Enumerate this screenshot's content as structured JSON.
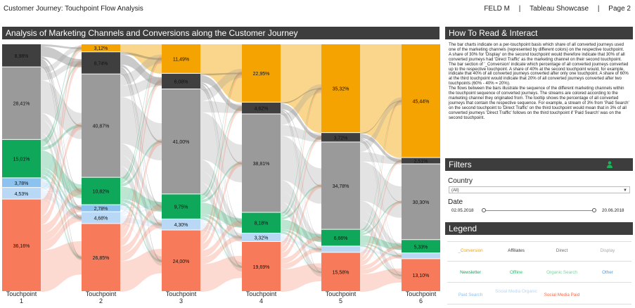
{
  "header": {
    "title": "Customer Journey: Touchpoint Flow Analysis",
    "brand": "FELD M",
    "sep1": "|",
    "showcase": "Tableau Showcase",
    "sep2": "|",
    "page": "Page 2"
  },
  "main": {
    "title": "Analysis of Marketing Channels and Conversions along the Customer Journey"
  },
  "howto": {
    "title": "How To Read & Interact",
    "paragraphs": [
      "The bar charts indicate on a per-touchpoint basis which share of all converted journeys used one of the marketing channels (represented by different colors) on the respective touchpoint.",
      "A share of 30% for 'Display' on the second touchpoint would therefore indicate that 30% of all converted journeys had 'Direct Traffic' as the marketing channel on their second touchpoint.",
      "The bar section of '_Conversion' indicate which percentage of all converted journeys converted up to the respective touchpoint. A share of 40% at the second touchpoint would, for example, indicate that 40% of all converted journeys converted after only one touchpoint. A share of 60% at the third touchpoint would indicate that 20% of all converted journeys converted after two touchpoints (60% - 40% = 20%).",
      "The flows between the bars illustrate the sequence of the different marketing channels within the touchpoint sequence of converted journeys. The streams are colored according to the marketing channel they originated from. The tooltip shows the percentage of all converted journeys that contain the respective sequence. For example, a stream of 3% from 'Paid Search' on the second touchpoint to 'Direct Traffic' on the third touchpoint would mean that in 3% of all converted journeys 'Direct Traffic' follows on the third touchpoint if 'Paid Search' was on the second touchpoint."
    ]
  },
  "filters": {
    "title": "Filters",
    "country_label": "Country",
    "country_value": "(All)",
    "date_label": "Date",
    "date_start": "02.05.2018",
    "date_end": "20.06.2018",
    "icon": "person-icon"
  },
  "legend": {
    "title": "Legend",
    "items": [
      {
        "label": "_Conversion",
        "color": "#f5a300"
      },
      {
        "label": "Affiliates",
        "color": "#3a3a3a"
      },
      {
        "label": "Direct",
        "color": "#6d6d6d"
      },
      {
        "label": "Display",
        "color": "#a8a8a8"
      },
      {
        "label": "Newsletter",
        "color": "#1aa35a"
      },
      {
        "label": "Offline",
        "color": "#38b86e"
      },
      {
        "label": "Organic Search",
        "color": "#7fd0a0"
      },
      {
        "label": "Other",
        "color": "#4b9be0"
      },
      {
        "label": "Paid Search",
        "color": "#8cbff0"
      },
      {
        "label": "Social Media Organic",
        "color": "#b7d6f5"
      },
      {
        "label": "Social Media Paid",
        "color": "#f26a4c"
      }
    ]
  },
  "chart_data": {
    "type": "bar",
    "categories": [
      "Touchpoint 1",
      "Touchpoint 2",
      "Touchpoint 3",
      "Touchpoint 4",
      "Touchpoint 5",
      "Touchpoint 6"
    ],
    "tp_lines": [
      [
        "Touchpoint",
        "1"
      ],
      [
        "Touchpoint",
        "2"
      ],
      [
        "Touchpoint",
        "3"
      ],
      [
        "Touchpoint",
        "4"
      ],
      [
        "Touchpoint",
        "5"
      ],
      [
        "Touchpoint",
        "6"
      ]
    ],
    "colors": {
      "_Conversion": "#f5a300",
      "Affiliates": "#3f3f3f",
      "Direct": "#9a9a9a",
      "Newsletter": "#0fa75a",
      "Other": "#8bc2f0",
      "Paid Search": "#b8d8f5",
      "Social Media Paid": "#f77b5a"
    },
    "bars": [
      [
        {
          "channel": "Affiliates",
          "value": 8.98,
          "label": "8,98%"
        },
        {
          "channel": "Direct",
          "value": 28.41,
          "label": "28,41%"
        },
        {
          "channel": "Newsletter",
          "value": 15.01,
          "label": "15,01%"
        },
        {
          "channel": "Other",
          "value": 3.78,
          "label": "3,78%"
        },
        {
          "channel": "Paid Search",
          "value": 4.53,
          "label": "4,53%"
        },
        {
          "channel": "Social Media Paid",
          "value": 36.16,
          "label": "36,16%"
        }
      ],
      [
        {
          "channel": "_Conversion",
          "value": 3.12,
          "label": "3,12%"
        },
        {
          "channel": "Affiliates",
          "value": 8.74,
          "label": "8,74%"
        },
        {
          "channel": "Direct",
          "value": 40.87,
          "label": "40,87%"
        },
        {
          "channel": "Newsletter",
          "value": 10.82,
          "label": "10,82%"
        },
        {
          "channel": "Other",
          "value": 2.78,
          "label": "2,78%"
        },
        {
          "channel": "Paid Search",
          "value": 4.68,
          "label": "4,68%"
        },
        {
          "channel": "Social Media Paid",
          "value": 26.85,
          "label": "26,85%"
        }
      ],
      [
        {
          "channel": "_Conversion",
          "value": 11.49,
          "label": "11,49%"
        },
        {
          "channel": "Affiliates",
          "value": 6.08,
          "label": "6,08%"
        },
        {
          "channel": "Direct",
          "value": 41.0,
          "label": "41,00%"
        },
        {
          "channel": "Newsletter",
          "value": 9.75,
          "label": "9,75%"
        },
        {
          "channel": "Paid Search",
          "value": 4.3,
          "label": "4,30%"
        },
        {
          "channel": "Social Media Paid",
          "value": 24.0,
          "label": "24,00%"
        }
      ],
      [
        {
          "channel": "_Conversion",
          "value": 22.95,
          "label": "22,95%"
        },
        {
          "channel": "Affiliates",
          "value": 4.62,
          "label": "4,62%"
        },
        {
          "channel": "Direct",
          "value": 38.81,
          "label": "38,81%"
        },
        {
          "channel": "Newsletter",
          "value": 8.18,
          "label": "8,18%"
        },
        {
          "channel": "Paid Search",
          "value": 3.32,
          "label": "3,32%"
        },
        {
          "channel": "Social Media Paid",
          "value": 19.69,
          "label": "19,69%"
        }
      ],
      [
        {
          "channel": "_Conversion",
          "value": 35.32,
          "label": "35,32%"
        },
        {
          "channel": "Affiliates",
          "value": 3.72,
          "label": "3,72%"
        },
        {
          "channel": "Direct",
          "value": 34.78,
          "label": "34,78%"
        },
        {
          "channel": "Newsletter",
          "value": 6.66,
          "label": "6,66%"
        },
        {
          "channel": "Paid Search",
          "value": 2.5,
          "label": ""
        },
        {
          "channel": "Social Media Paid",
          "value": 15.58,
          "label": "15,58%"
        }
      ],
      [
        {
          "channel": "_Conversion",
          "value": 45.44,
          "label": "45,44%"
        },
        {
          "channel": "Affiliates",
          "value": 2.51,
          "label": "2,51%"
        },
        {
          "channel": "Direct",
          "value": 30.3,
          "label": "30,30%"
        },
        {
          "channel": "Newsletter",
          "value": 5.33,
          "label": "5,33%"
        },
        {
          "channel": "Paid Search",
          "value": 2.3,
          "label": ""
        },
        {
          "channel": "Social Media Paid",
          "value": 13.1,
          "label": "13,10%"
        }
      ]
    ]
  }
}
